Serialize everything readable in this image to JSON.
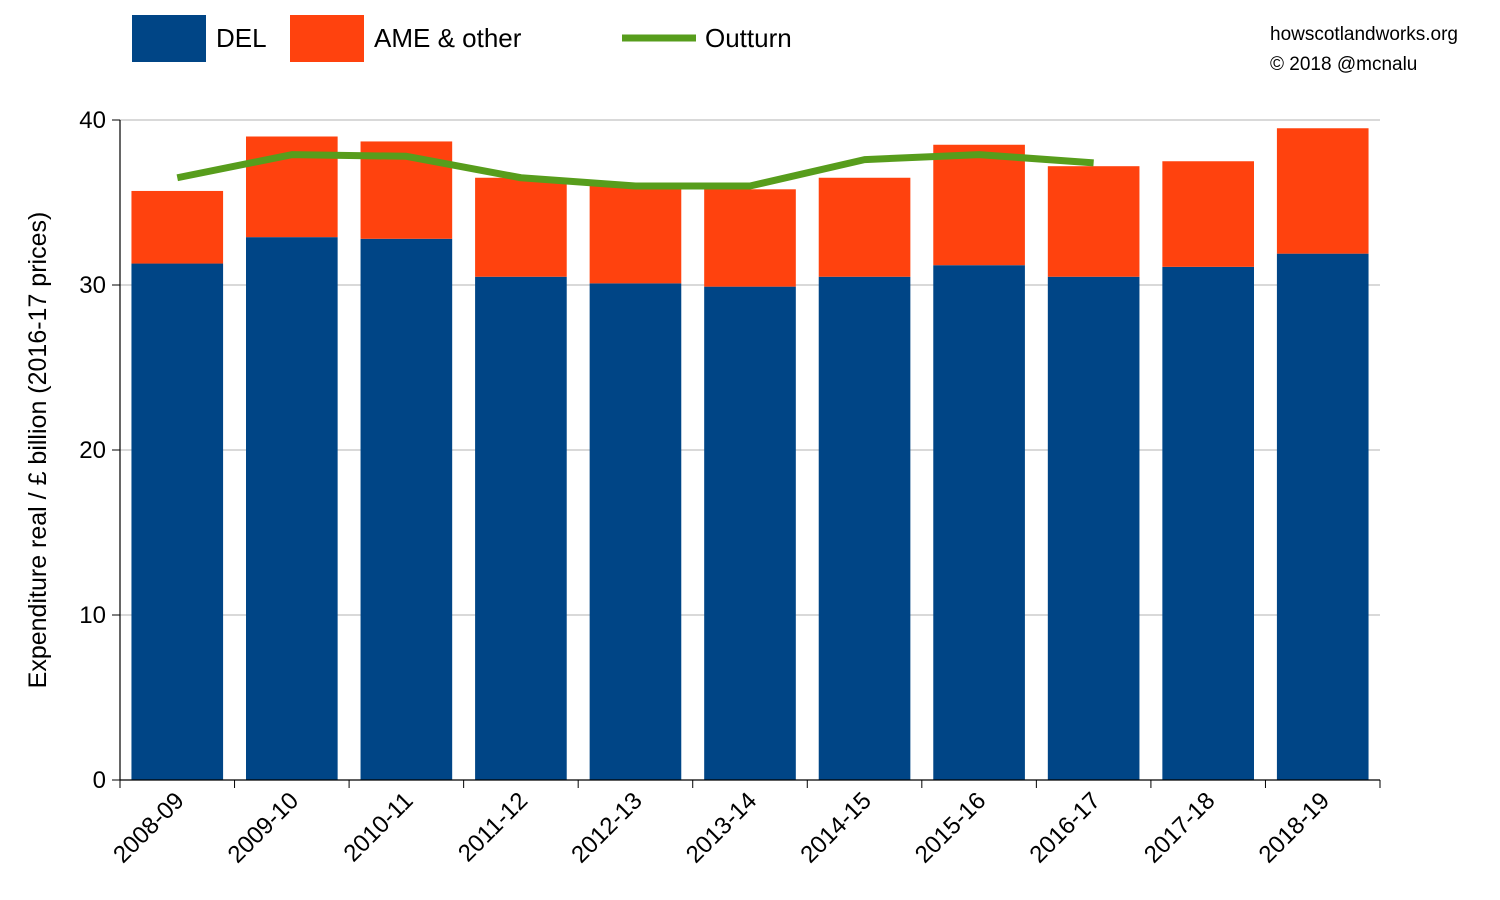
{
  "credit": {
    "site": "howscotlandworks.org",
    "copyright": "© 2018  @mcnalu"
  },
  "legend": {
    "items": [
      {
        "label": "DEL",
        "color": "#004586"
      },
      {
        "label": "AME & other",
        "color": "#ff420e"
      },
      {
        "label": "Outturn",
        "color": "#579d1c"
      }
    ]
  },
  "chart_data": {
    "type": "bar",
    "stacked": true,
    "title": "",
    "xlabel": "",
    "ylabel": "Expenditure real / £ billion (2016-17 prices)",
    "ylim": [
      0,
      40
    ],
    "yticks": [
      0,
      10,
      20,
      30,
      40
    ],
    "grid": true,
    "legend_position": "top-left",
    "categories": [
      "2008-09",
      "2009-10",
      "2010-11",
      "2011-12",
      "2012-13",
      "2013-14",
      "2014-15",
      "2015-16",
      "2016-17",
      "2017-18",
      "2018-19"
    ],
    "series": [
      {
        "name": "DEL",
        "color": "#004586",
        "values": [
          31.3,
          32.9,
          32.8,
          30.5,
          30.1,
          29.9,
          30.5,
          31.2,
          30.5,
          31.1,
          31.9
        ]
      },
      {
        "name": "AME & other",
        "color": "#ff420e",
        "values": [
          4.4,
          6.1,
          5.9,
          6.0,
          6.0,
          5.9,
          6.0,
          7.3,
          6.7,
          6.4,
          7.6
        ]
      }
    ],
    "line_series": [
      {
        "name": "Outturn",
        "color": "#579d1c",
        "values": [
          36.5,
          37.9,
          37.8,
          36.5,
          36.0,
          36.0,
          37.6,
          37.9,
          37.4,
          null,
          null
        ]
      }
    ]
  }
}
